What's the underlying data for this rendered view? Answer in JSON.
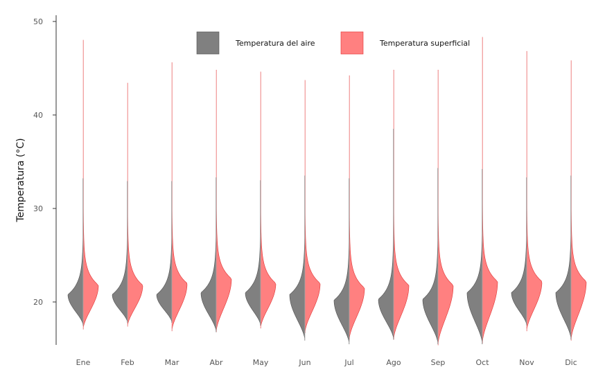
{
  "chart_data": {
    "type": "split-violin",
    "ylabel": "Temperatura (°C)",
    "ylim": [
      15,
      50
    ],
    "y_ticks": [
      20,
      30,
      40,
      50
    ],
    "categories": [
      "Ene",
      "Feb",
      "Mar",
      "Abr",
      "May",
      "Jun",
      "Jul",
      "Ago",
      "Sep",
      "Oct",
      "Nov",
      "Dic"
    ],
    "legend_placement": "top",
    "series": [
      {
        "name": "Temperatura superficial",
        "side": "right",
        "color": "#FF8080",
        "edge": "#E03030",
        "min": [
          17.1,
          17.4,
          16.9,
          16.8,
          17.2,
          16.7,
          16.0,
          16.0,
          15.4,
          15.6,
          16.9,
          15.9
        ],
        "max": [
          48.0,
          43.4,
          45.6,
          44.8,
          44.6,
          43.7,
          44.2,
          44.8,
          44.8,
          48.3,
          46.8,
          45.8
        ],
        "mode": [
          21.8,
          21.8,
          22.0,
          22.5,
          22.0,
          22.0,
          21.5,
          21.8,
          21.8,
          22.2,
          22.2,
          22.2
        ]
      },
      {
        "name": "Temperatura del aire",
        "side": "left",
        "color": "#808080",
        "edge": "#505050",
        "min": [
          17.5,
          17.8,
          17.8,
          16.8,
          17.5,
          15.9,
          15.5,
          16.0,
          15.5,
          15.5,
          17.5,
          16.0
        ],
        "max": [
          33.2,
          32.9,
          32.9,
          33.3,
          33.0,
          33.5,
          33.2,
          38.5,
          34.3,
          34.2,
          33.3,
          33.5
        ],
        "mode": [
          20.8,
          20.8,
          20.8,
          21.0,
          21.0,
          20.8,
          20.2,
          20.3,
          20.3,
          21.0,
          21.0,
          21.0
        ]
      }
    ]
  }
}
